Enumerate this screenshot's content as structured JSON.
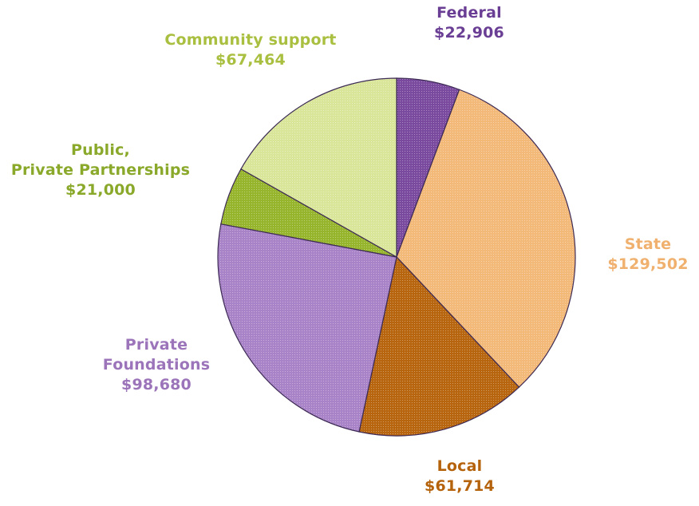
{
  "chart_data": {
    "type": "pie",
    "title": "",
    "start_angle_deg": 0,
    "direction": "clockwise",
    "slices": [
      {
        "name": "Federal",
        "lines": [
          "Federal"
        ],
        "value": 22906,
        "value_label": "$22,906",
        "color": "#7a4a9f",
        "label_color": "#6a3e94"
      },
      {
        "name": "State",
        "lines": [
          "State"
        ],
        "value": 129502,
        "value_label": "$129,502",
        "color": "#f2b978",
        "label_color": "#f0b06e"
      },
      {
        "name": "Local",
        "lines": [
          "Local"
        ],
        "value": 61714,
        "value_label": "$61,714",
        "color": "#b8650f",
        "label_color": "#b5620c"
      },
      {
        "name": "Private Foundations",
        "lines": [
          "Private",
          "Foundations"
        ],
        "value": 98680,
        "value_label": "$98,680",
        "color": "#a983c7",
        "label_color": "#9b74ba"
      },
      {
        "name": "Public, Private Partnerships",
        "lines": [
          "Public,",
          "Private Partnerships"
        ],
        "value": 21000,
        "value_label": "$21,000",
        "color": "#96b52c",
        "label_color": "#8aa92a"
      },
      {
        "name": "Community support",
        "lines": [
          "Community support"
        ],
        "value": 67464,
        "value_label": "$67,464",
        "color": "#d9e69a",
        "label_color": "#a9bf3f"
      }
    ]
  }
}
